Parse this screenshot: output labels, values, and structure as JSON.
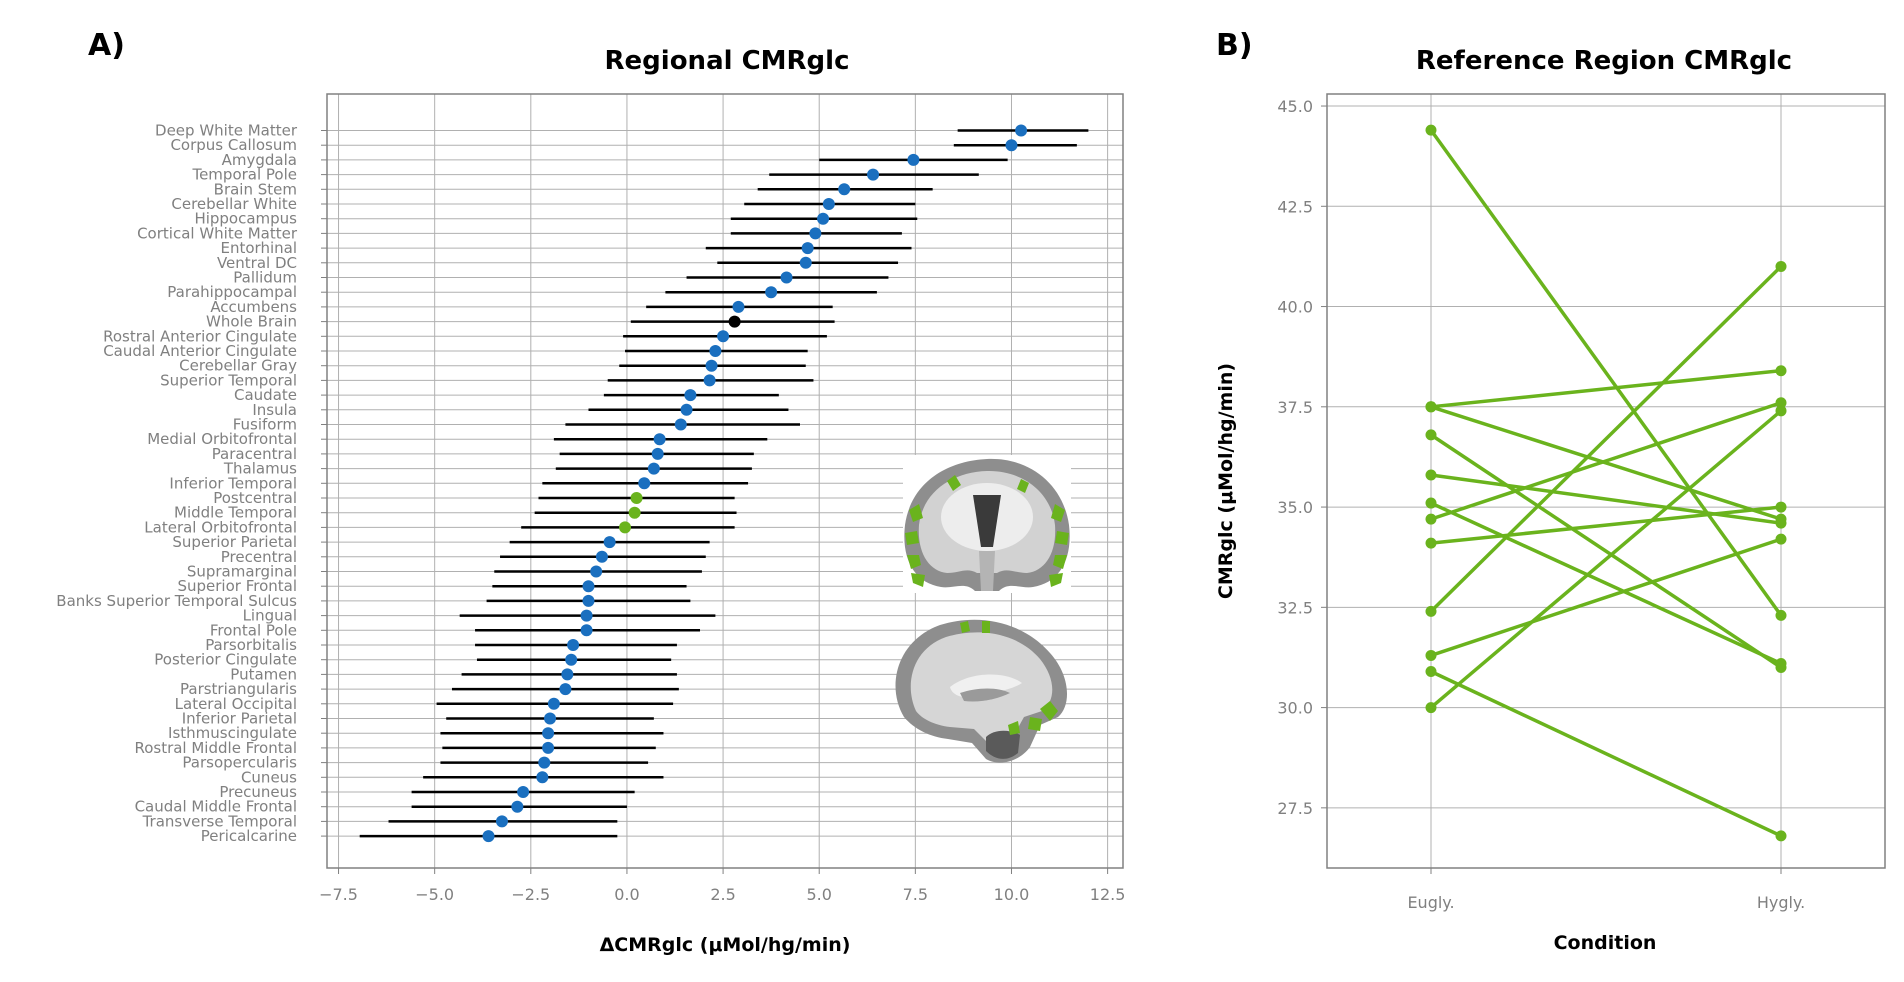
{
  "panel_a_letter": "A)",
  "panel_b_letter": "B)",
  "chart_data": [
    {
      "type": "forest",
      "title": "Regional CMRglc",
      "xlabel": "ΔCMRglc (μMol/hg/min)",
      "xlim": [
        -7.8,
        12.9
      ],
      "xticks": [
        -7.5,
        -5.0,
        -2.5,
        0.0,
        2.5,
        5.0,
        7.5,
        10.0,
        12.5
      ],
      "xtick_labels": [
        "−7.5",
        "−5.0",
        "−2.5",
        "0.0",
        "2.5",
        "5.0",
        "7.5",
        "10.0",
        "12.5"
      ],
      "grid": true,
      "colors": {
        "region": "#1a6fbf",
        "whole_brain": "#000000",
        "reference": "#6ab31d",
        "ci": "#000000"
      },
      "regions": [
        {
          "name": "Deep White Matter",
          "value": 10.25,
          "lo": 8.6,
          "hi": 12.0,
          "group": "region"
        },
        {
          "name": "Corpus Callosum",
          "value": 10.0,
          "lo": 8.5,
          "hi": 11.7,
          "group": "region"
        },
        {
          "name": "Amygdala",
          "value": 7.45,
          "lo": 5.0,
          "hi": 9.9,
          "group": "region"
        },
        {
          "name": "Temporal Pole",
          "value": 6.4,
          "lo": 3.7,
          "hi": 9.15,
          "group": "region"
        },
        {
          "name": "Brain Stem",
          "value": 5.65,
          "lo": 3.4,
          "hi": 7.95,
          "group": "region"
        },
        {
          "name": "Cerebellar White",
          "value": 5.25,
          "lo": 3.05,
          "hi": 7.5,
          "group": "region"
        },
        {
          "name": "Hippocampus",
          "value": 5.1,
          "lo": 2.7,
          "hi": 7.55,
          "group": "region"
        },
        {
          "name": "Cortical White Matter",
          "value": 4.9,
          "lo": 2.7,
          "hi": 7.15,
          "group": "region"
        },
        {
          "name": "Entorhinal",
          "value": 4.7,
          "lo": 2.05,
          "hi": 7.4,
          "group": "region"
        },
        {
          "name": "Ventral DC",
          "value": 4.65,
          "lo": 2.35,
          "hi": 7.05,
          "group": "region"
        },
        {
          "name": "Pallidum",
          "value": 4.15,
          "lo": 1.55,
          "hi": 6.8,
          "group": "region"
        },
        {
          "name": "Parahippocampal",
          "value": 3.75,
          "lo": 1.0,
          "hi": 6.5,
          "group": "region"
        },
        {
          "name": "Accumbens",
          "value": 2.9,
          "lo": 0.5,
          "hi": 5.35,
          "group": "region"
        },
        {
          "name": "Whole Brain",
          "value": 2.8,
          "lo": 0.1,
          "hi": 5.4,
          "group": "whole_brain"
        },
        {
          "name": "Rostral Anterior Cingulate",
          "value": 2.5,
          "lo": -0.1,
          "hi": 5.2,
          "group": "region"
        },
        {
          "name": "Caudal Anterior Cingulate",
          "value": 2.3,
          "lo": -0.05,
          "hi": 4.7,
          "group": "region"
        },
        {
          "name": "Cerebellar Gray",
          "value": 2.2,
          "lo": -0.2,
          "hi": 4.65,
          "group": "region"
        },
        {
          "name": "Superior Temporal",
          "value": 2.15,
          "lo": -0.5,
          "hi": 4.85,
          "group": "region"
        },
        {
          "name": "Caudate",
          "value": 1.65,
          "lo": -0.6,
          "hi": 3.95,
          "group": "region"
        },
        {
          "name": "Insula",
          "value": 1.55,
          "lo": -1.0,
          "hi": 4.2,
          "group": "region"
        },
        {
          "name": "Fusiform",
          "value": 1.4,
          "lo": -1.6,
          "hi": 4.5,
          "group": "region"
        },
        {
          "name": "Medial Orbitofrontal",
          "value": 0.85,
          "lo": -1.9,
          "hi": 3.65,
          "group": "region"
        },
        {
          "name": "Paracentral",
          "value": 0.8,
          "lo": -1.75,
          "hi": 3.3,
          "group": "region"
        },
        {
          "name": "Thalamus",
          "value": 0.7,
          "lo": -1.85,
          "hi": 3.25,
          "group": "region"
        },
        {
          "name": "Inferior Temporal",
          "value": 0.45,
          "lo": -2.2,
          "hi": 3.15,
          "group": "region"
        },
        {
          "name": "Postcentral",
          "value": 0.25,
          "lo": -2.3,
          "hi": 2.8,
          "group": "reference"
        },
        {
          "name": "Middle Temporal",
          "value": 0.2,
          "lo": -2.4,
          "hi": 2.85,
          "group": "reference"
        },
        {
          "name": "Lateral Orbitofrontal",
          "value": -0.05,
          "lo": -2.75,
          "hi": 2.8,
          "group": "reference"
        },
        {
          "name": "Superior Parietal",
          "value": -0.45,
          "lo": -3.05,
          "hi": 2.15,
          "group": "region"
        },
        {
          "name": "Precentral",
          "value": -0.65,
          "lo": -3.3,
          "hi": 2.05,
          "group": "region"
        },
        {
          "name": "Supramarginal",
          "value": -0.8,
          "lo": -3.45,
          "hi": 1.95,
          "group": "region"
        },
        {
          "name": "Superior Frontal",
          "value": -1.0,
          "lo": -3.5,
          "hi": 1.55,
          "group": "region"
        },
        {
          "name": "Banks Superior Temporal Sulcus",
          "value": -1.0,
          "lo": -3.65,
          "hi": 1.65,
          "group": "region"
        },
        {
          "name": "Lingual",
          "value": -1.05,
          "lo": -4.35,
          "hi": 2.3,
          "group": "region"
        },
        {
          "name": "Frontal Pole",
          "value": -1.05,
          "lo": -3.95,
          "hi": 1.9,
          "group": "region"
        },
        {
          "name": "Parsorbitalis",
          "value": -1.4,
          "lo": -3.95,
          "hi": 1.3,
          "group": "region"
        },
        {
          "name": "Posterior Cingulate",
          "value": -1.45,
          "lo": -3.9,
          "hi": 1.15,
          "group": "region"
        },
        {
          "name": "Putamen",
          "value": -1.55,
          "lo": -4.3,
          "hi": 1.3,
          "group": "region"
        },
        {
          "name": "Parstriangularis",
          "value": -1.6,
          "lo": -4.55,
          "hi": 1.35,
          "group": "region"
        },
        {
          "name": "Lateral Occipital",
          "value": -1.9,
          "lo": -4.95,
          "hi": 1.2,
          "group": "region"
        },
        {
          "name": "Inferior Parietal",
          "value": -2.0,
          "lo": -4.7,
          "hi": 0.7,
          "group": "region"
        },
        {
          "name": "Isthmuscingulate",
          "value": -2.05,
          "lo": -4.85,
          "hi": 0.95,
          "group": "region"
        },
        {
          "name": "Rostral Middle Frontal",
          "value": -2.05,
          "lo": -4.8,
          "hi": 0.75,
          "group": "region"
        },
        {
          "name": "Parsopercularis",
          "value": -2.15,
          "lo": -4.85,
          "hi": 0.55,
          "group": "region"
        },
        {
          "name": "Cuneus",
          "value": -2.2,
          "lo": -5.3,
          "hi": 0.95,
          "group": "region"
        },
        {
          "name": "Precuneus",
          "value": -2.7,
          "lo": -5.6,
          "hi": 0.2,
          "group": "region"
        },
        {
          "name": "Caudal Middle Frontal",
          "value": -2.85,
          "lo": -5.6,
          "hi": 0.0,
          "group": "region"
        },
        {
          "name": "Transverse Temporal",
          "value": -3.25,
          "lo": -6.2,
          "hi": -0.25,
          "group": "region"
        },
        {
          "name": "Pericalcarine",
          "value": -3.6,
          "lo": -6.95,
          "hi": -0.25,
          "group": "region"
        }
      ]
    },
    {
      "type": "line",
      "title": "Reference Region CMRglc",
      "xlabel": "Condition",
      "ylabel": "CMRglc (μMol/hg/min)",
      "categories": [
        "Eugly.",
        "Hygly."
      ],
      "ylim": [
        26.0,
        45.3
      ],
      "yticks": [
        27.5,
        30.0,
        32.5,
        35.0,
        37.5,
        40.0,
        42.5,
        45.0
      ],
      "ytick_labels": [
        "27.5",
        "30.0",
        "32.5",
        "35.0",
        "37.5",
        "40.0",
        "42.5",
        "45.0"
      ],
      "grid": true,
      "color": "#6ab31d",
      "series": [
        {
          "values": [
            44.4,
            32.3
          ]
        },
        {
          "values": [
            37.5,
            38.4
          ]
        },
        {
          "values": [
            37.5,
            34.7
          ]
        },
        {
          "values": [
            36.8,
            31.0
          ]
        },
        {
          "values": [
            35.8,
            34.6
          ]
        },
        {
          "values": [
            35.1,
            31.1
          ]
        },
        {
          "values": [
            34.7,
            37.6
          ]
        },
        {
          "values": [
            34.1,
            35.0
          ]
        },
        {
          "values": [
            32.4,
            41.0
          ]
        },
        {
          "values": [
            31.3,
            34.2
          ]
        },
        {
          "values": [
            30.9,
            26.8
          ]
        },
        {
          "values": [
            30.0,
            37.4
          ]
        }
      ]
    }
  ]
}
